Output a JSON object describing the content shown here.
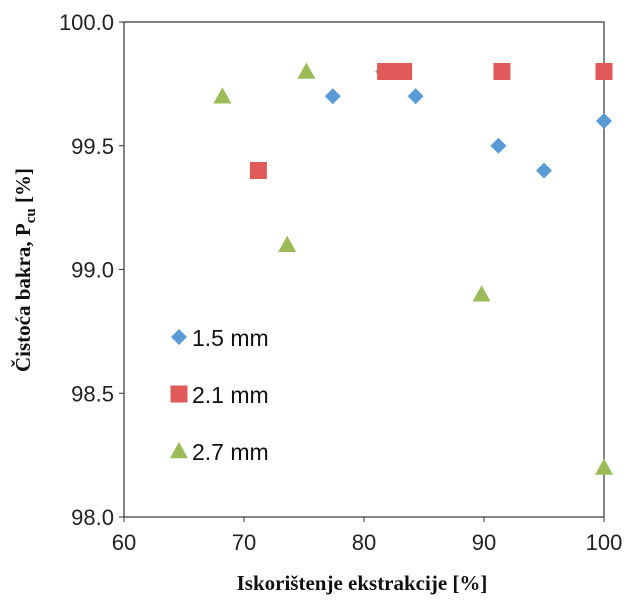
{
  "chart_data": {
    "type": "scatter",
    "xlabel": "Iskorištenje ekstrakcije [%]",
    "ylabel_main": "Čistoća bakra, P",
    "ylabel_sub": "cu",
    "ylabel_tail": " [%]",
    "xlim": [
      60,
      100
    ],
    "ylim": [
      98.0,
      100.0
    ],
    "x_ticks": [
      "60",
      "70",
      "80",
      "90",
      "100"
    ],
    "y_ticks": [
      "98.0",
      "98.5",
      "99.0",
      "99.5",
      "100.0"
    ],
    "grid": false,
    "legend_position": "left",
    "series": [
      {
        "name": "1.5 mm",
        "marker": "diamond",
        "color": "#5b9bd5",
        "points": [
          [
            77.4,
            99.7
          ],
          [
            81.6,
            99.8
          ],
          [
            84.3,
            99.7
          ],
          [
            91.2,
            99.5
          ],
          [
            95.0,
            99.4
          ],
          [
            100.0,
            99.6
          ]
        ]
      },
      {
        "name": "2.1 mm",
        "marker": "square",
        "color": "#e05a5a",
        "points": [
          [
            71.2,
            99.4
          ],
          [
            81.8,
            99.8
          ],
          [
            82.3,
            99.8
          ],
          [
            82.8,
            99.8
          ],
          [
            83.3,
            99.8
          ],
          [
            91.5,
            99.8
          ],
          [
            100.0,
            99.8
          ]
        ]
      },
      {
        "name": "2.7 mm",
        "marker": "triangle",
        "color": "#9bbb59",
        "points": [
          [
            68.2,
            99.7
          ],
          [
            73.6,
            99.1
          ],
          [
            75.2,
            99.8
          ],
          [
            89.8,
            98.9
          ],
          [
            100.0,
            98.2
          ]
        ]
      }
    ]
  }
}
